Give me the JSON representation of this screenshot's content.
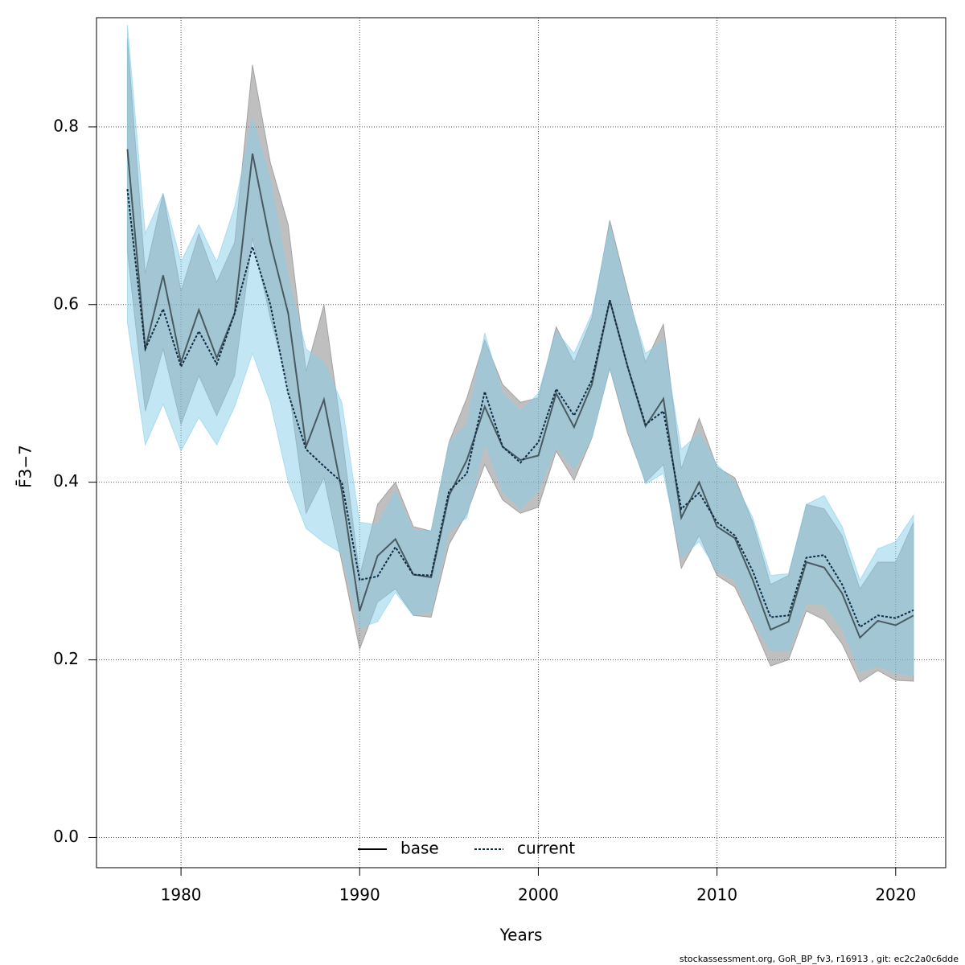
{
  "chart_data": {
    "type": "line",
    "xlabel": "Years",
    "ylabel": "F̄3−7",
    "footnote": "stockassessment.org, GoR_BP_fv3, r16913 , git: ec2c2a0c6dde",
    "x": [
      1977,
      1978,
      1979,
      1980,
      1981,
      1982,
      1983,
      1984,
      1985,
      1986,
      1987,
      1988,
      1989,
      1990,
      1991,
      1992,
      1993,
      1994,
      1995,
      1996,
      1997,
      1998,
      1999,
      2000,
      2001,
      2002,
      2003,
      2004,
      2005,
      2006,
      2007,
      2008,
      2009,
      2010,
      2011,
      2012,
      2013,
      2014,
      2015,
      2016,
      2017,
      2018,
      2019,
      2020,
      2021
    ],
    "series": [
      {
        "name": "base",
        "color": "#000000",
        "dash": "solid",
        "band_color": "#808080",
        "band_opacity": 0.5,
        "values": [
          0.775,
          0.55,
          0.633,
          0.535,
          0.594,
          0.54,
          0.59,
          0.77,
          0.67,
          0.59,
          0.44,
          0.493,
          0.39,
          0.255,
          0.317,
          0.336,
          0.296,
          0.293,
          0.385,
          0.425,
          0.485,
          0.44,
          0.425,
          0.43,
          0.5,
          0.462,
          0.51,
          0.605,
          0.53,
          0.463,
          0.494,
          0.36,
          0.4,
          0.35,
          0.337,
          0.29,
          0.234,
          0.243,
          0.31,
          0.304,
          0.275,
          0.225,
          0.244,
          0.239,
          0.25
        ],
        "upper": [
          0.9,
          0.635,
          0.725,
          0.615,
          0.68,
          0.625,
          0.67,
          0.87,
          0.76,
          0.69,
          0.525,
          0.6,
          0.455,
          0.295,
          0.375,
          0.4,
          0.35,
          0.345,
          0.445,
          0.495,
          0.56,
          0.51,
          0.49,
          0.495,
          0.575,
          0.535,
          0.585,
          0.695,
          0.615,
          0.535,
          0.578,
          0.415,
          0.472,
          0.417,
          0.405,
          0.355,
          0.285,
          0.295,
          0.375,
          0.37,
          0.34,
          0.28,
          0.31,
          0.31,
          0.355
        ],
        "lower": [
          0.66,
          0.48,
          0.55,
          0.465,
          0.52,
          0.475,
          0.52,
          0.675,
          0.585,
          0.51,
          0.365,
          0.405,
          0.31,
          0.212,
          0.265,
          0.28,
          0.25,
          0.248,
          0.33,
          0.365,
          0.42,
          0.38,
          0.365,
          0.372,
          0.435,
          0.402,
          0.45,
          0.528,
          0.455,
          0.4,
          0.42,
          0.303,
          0.34,
          0.295,
          0.282,
          0.24,
          0.193,
          0.2,
          0.255,
          0.245,
          0.218,
          0.175,
          0.188,
          0.177,
          0.176
        ]
      },
      {
        "name": "current",
        "color": "#0d2b45",
        "dash": "dotted",
        "band_color": "#87ceeb",
        "band_opacity": 0.5,
        "values": [
          0.73,
          0.55,
          0.595,
          0.53,
          0.57,
          0.533,
          0.59,
          0.665,
          0.6,
          0.5,
          0.437,
          0.418,
          0.4,
          0.29,
          0.294,
          0.327,
          0.296,
          0.295,
          0.39,
          0.41,
          0.502,
          0.44,
          0.422,
          0.445,
          0.505,
          0.475,
          0.515,
          0.605,
          0.53,
          0.465,
          0.48,
          0.37,
          0.388,
          0.355,
          0.34,
          0.3,
          0.248,
          0.25,
          0.315,
          0.318,
          0.285,
          0.237,
          0.25,
          0.247,
          0.256
        ],
        "upper": [
          0.915,
          0.68,
          0.725,
          0.648,
          0.69,
          0.648,
          0.71,
          0.81,
          0.74,
          0.63,
          0.55,
          0.535,
          0.49,
          0.355,
          0.352,
          0.39,
          0.345,
          0.345,
          0.445,
          0.465,
          0.568,
          0.5,
          0.48,
          0.5,
          0.57,
          0.545,
          0.59,
          0.69,
          0.61,
          0.545,
          0.56,
          0.437,
          0.455,
          0.42,
          0.4,
          0.36,
          0.295,
          0.297,
          0.375,
          0.385,
          0.35,
          0.29,
          0.325,
          0.333,
          0.363
        ],
        "lower": [
          0.58,
          0.442,
          0.488,
          0.435,
          0.473,
          0.442,
          0.485,
          0.545,
          0.49,
          0.4,
          0.348,
          0.332,
          0.32,
          0.236,
          0.243,
          0.276,
          0.25,
          0.255,
          0.345,
          0.36,
          0.445,
          0.39,
          0.37,
          0.39,
          0.44,
          0.415,
          0.45,
          0.53,
          0.46,
          0.398,
          0.41,
          0.315,
          0.333,
          0.3,
          0.29,
          0.245,
          0.21,
          0.21,
          0.263,
          0.262,
          0.236,
          0.187,
          0.193,
          0.185,
          0.183
        ]
      }
    ],
    "xlim": [
      1975.27,
      2022.8
    ],
    "ylim": [
      -0.034,
      0.923
    ],
    "xticks": [
      1980,
      1990,
      2000,
      2010,
      2020
    ],
    "yticks": [
      {
        "value": 0,
        "label": "0.0"
      },
      0.2,
      0.4,
      0.6,
      0.8
    ],
    "grid": true,
    "legend": "bottom"
  }
}
